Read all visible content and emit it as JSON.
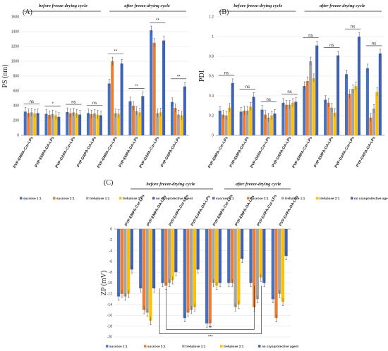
{
  "figure": {
    "categories": [
      "PVP-EMPA-Cur-LPs",
      "PVP-EMPA-OA-LPs",
      "PVP-DAPA-Cur-LPs",
      "PVP-DAPA-OA-LPs"
    ],
    "group_labels": [
      "before freeze-drying cycle",
      "after freeze-drying cycle"
    ],
    "legend": [
      "sucrose 1:1",
      "sucrose 2:1",
      "trehalose 1:1",
      "trehalose 2:1",
      "no cryoprotective agent"
    ],
    "colors": [
      "#4472C4",
      "#ED7D31",
      "#A5A5A5",
      "#FFC000",
      "#4062B5"
    ]
  },
  "chart_data": [
    {
      "type": "bar",
      "panel": "(A)",
      "ylabel": "PS (nm)",
      "ylim": [
        0,
        1600
      ],
      "yticks": [
        0,
        200,
        400,
        600,
        800,
        1000,
        1200,
        1400,
        1600
      ],
      "grid": true,
      "legend_position": "bottom",
      "series": [
        {
          "name": "sucrose 1:1",
          "values": [
            320,
            290,
            315,
            300,
            700,
            460,
            1420,
            450
          ]
        },
        {
          "name": "sucrose 2:1",
          "values": [
            300,
            275,
            300,
            285,
            1000,
            400,
            1250,
            370
          ]
        },
        {
          "name": "trehalose 1:1",
          "values": [
            310,
            285,
            310,
            295,
            300,
            330,
            300,
            280
          ]
        },
        {
          "name": "trehalose 2:1",
          "values": [
            295,
            270,
            295,
            280,
            290,
            310,
            310,
            270
          ]
        },
        {
          "name": "no cryoprotective agent",
          "values": [
            300,
            250,
            280,
            270,
            970,
            530,
            1280,
            660
          ]
        }
      ],
      "annotations": [
        "ns",
        "*",
        "ns",
        "ns",
        "**",
        "**",
        "**",
        "**"
      ]
    },
    {
      "type": "bar",
      "panel": "(B)",
      "ylabel": "PDI",
      "ylim": [
        0,
        1.2
      ],
      "yticks": [
        0,
        0.2,
        0.4,
        0.6,
        0.8,
        1,
        1.2
      ],
      "grid": true,
      "legend_position": "bottom",
      "series": [
        {
          "name": "sucrose 1:1",
          "values": [
            0.25,
            0.24,
            0.26,
            0.33,
            0.5,
            0.36,
            0.62,
            0.68
          ]
        },
        {
          "name": "sucrose 2:1",
          "values": [
            0.21,
            0.25,
            0.21,
            0.31,
            0.55,
            0.33,
            0.42,
            0.18
          ]
        },
        {
          "name": "trehalose 1:1",
          "values": [
            0.2,
            0.25,
            0.18,
            0.31,
            0.75,
            0.28,
            0.47,
            0.27
          ]
        },
        {
          "name": "trehalose 2:1",
          "values": [
            0.28,
            0.29,
            0.2,
            0.33,
            0.58,
            0.23,
            0.5,
            0.44
          ]
        },
        {
          "name": "no cryoprotective agent",
          "values": [
            0.53,
            0.39,
            0.22,
            0.34,
            0.91,
            0.81,
            1.0,
            0.83
          ]
        }
      ],
      "annotations": [
        "ns",
        "ns",
        "ns",
        "ns",
        "ns",
        "ns",
        "ns",
        "ns"
      ]
    },
    {
      "type": "bar",
      "panel": "(C)",
      "ylabel": "ZP (mV)",
      "ylim": [
        -20,
        0
      ],
      "yticks": [
        0,
        -2,
        -4,
        -6,
        -8,
        -10,
        -12,
        -14,
        -16,
        -18,
        -20
      ],
      "grid": true,
      "legend_position": "bottom",
      "series": [
        {
          "name": "sucrose 1:1",
          "values": [
            -12.5,
            -11.0,
            -10.0,
            -16.5,
            -17.5,
            -10.0,
            -10.0,
            -13.0
          ]
        },
        {
          "name": "sucrose 2:1",
          "values": [
            -12.0,
            -15.0,
            -10.5,
            -15.5,
            -17.5,
            -10.0,
            -14.5,
            -16.5
          ]
        },
        {
          "name": "trehalose 1:1",
          "values": [
            -12.5,
            -15.5,
            -10.0,
            -15.0,
            -10.0,
            -14.5,
            -13.0,
            -12.0
          ]
        },
        {
          "name": "trehalose 2:1",
          "values": [
            -12.0,
            -17.0,
            -9.5,
            -14.5,
            -10.5,
            -14.0,
            -9.0,
            -13.5
          ]
        },
        {
          "name": "no cryoprotective agent",
          "values": [
            -7.5,
            -11.0,
            -8.0,
            -7.5,
            -10.0,
            -5.5,
            -10.0,
            -5.0
          ]
        }
      ],
      "annotations": [
        "**",
        "***"
      ]
    }
  ]
}
